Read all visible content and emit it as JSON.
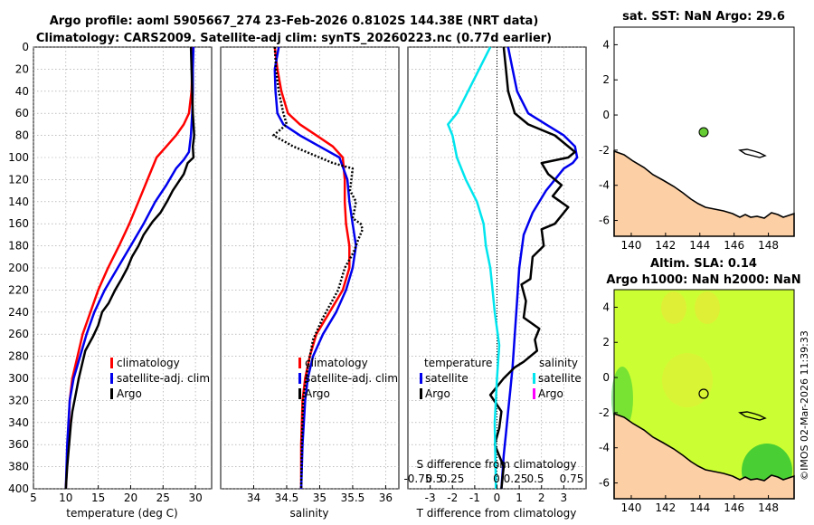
{
  "header": {
    "line1": "Argo profile: aoml 5905667_274 23-Feb-2026 0.8102S 144.38E (NRT data)",
    "line2": "Climatology: CARS2009. Satellite-adj clim: synTS_20260223.nc (0.77d earlier)"
  },
  "chart_data": [
    {
      "type": "line",
      "name": "temperature-profile",
      "xlabel": "temperature (deg C)",
      "ylabel": "",
      "xlim": [
        5,
        32.5
      ],
      "ylim": [
        0,
        400
      ],
      "xticks": [
        "5",
        "10",
        "15",
        "20",
        "25",
        "30"
      ],
      "yticks": [
        "0",
        "20",
        "40",
        "60",
        "80",
        "100",
        "120",
        "140",
        "160",
        "180",
        "200",
        "220",
        "240",
        "260",
        "280",
        "300",
        "320",
        "340",
        "360",
        "380",
        "400"
      ],
      "series": [
        {
          "name": "climatology",
          "color": "#ff0000",
          "x": [
            29.6,
            29.5,
            29.4,
            29.0,
            28.2,
            27.0,
            25.5,
            24.0,
            22.6,
            21.2,
            19.8,
            18.2,
            16.5,
            15.0,
            13.8,
            12.6,
            11.8,
            11.0,
            10.6,
            10.3,
            10.0
          ],
          "y": [
            0,
            20,
            40,
            60,
            70,
            80,
            90,
            100,
            120,
            140,
            160,
            180,
            200,
            220,
            240,
            260,
            280,
            300,
            320,
            360,
            400
          ]
        },
        {
          "name": "satellite-adj. clim",
          "color": "#0000ee",
          "x": [
            29.7,
            29.6,
            29.6,
            29.5,
            29.3,
            29.0,
            28.2,
            27.0,
            25.5,
            23.8,
            22.0,
            20.0,
            18.0,
            16.0,
            14.4,
            13.2,
            12.2,
            11.2,
            10.6,
            10.2,
            10.0
          ],
          "y": [
            0,
            20,
            40,
            60,
            80,
            95,
            102,
            110,
            125,
            140,
            160,
            180,
            200,
            220,
            240,
            260,
            280,
            300,
            320,
            360,
            400
          ]
        },
        {
          "name": "Argo",
          "color": "#000000",
          "x": [
            29.3,
            29.4,
            29.5,
            29.6,
            29.8,
            29.6,
            29.7,
            28.8,
            28.2,
            26.5,
            25.6,
            24.6,
            23.4,
            22.0,
            21.2,
            20.2,
            19.5,
            18.6,
            17.6,
            16.6,
            15.6,
            15.0,
            14.2,
            13.0,
            12.6,
            12.0,
            11.5,
            11.0,
            10.8,
            10.5,
            10.2,
            10.0
          ],
          "y": [
            0,
            20,
            40,
            60,
            80,
            90,
            100,
            105,
            115,
            130,
            140,
            150,
            158,
            170,
            180,
            190,
            200,
            210,
            220,
            232,
            240,
            252,
            262,
            275,
            285,
            300,
            315,
            330,
            340,
            360,
            380,
            400
          ]
        }
      ]
    },
    {
      "type": "line",
      "name": "salinity-profile",
      "xlabel": "salinity",
      "xlim": [
        33.5,
        36.2
      ],
      "ylim": [
        0,
        400
      ],
      "xticks": [
        "34",
        "34.5",
        "35",
        "35.5",
        "36"
      ],
      "series": [
        {
          "name": "climatology",
          "color": "#ff0000",
          "x": [
            34.32,
            34.36,
            34.42,
            34.52,
            34.7,
            34.95,
            35.2,
            35.35,
            35.38,
            35.38,
            35.4,
            35.45,
            35.45,
            35.35,
            35.15,
            34.95,
            34.85,
            34.78,
            34.74,
            34.72,
            34.72
          ],
          "y": [
            0,
            20,
            40,
            60,
            70,
            80,
            90,
            100,
            120,
            140,
            160,
            180,
            200,
            220,
            240,
            260,
            280,
            300,
            320,
            360,
            400
          ]
        },
        {
          "name": "satellite-adj. clim",
          "color": "#0000ee",
          "x": [
            34.38,
            34.32,
            34.33,
            34.36,
            34.45,
            34.7,
            35.0,
            35.3,
            35.42,
            35.45,
            35.5,
            35.55,
            35.5,
            35.4,
            35.25,
            35.05,
            34.9,
            34.82,
            34.78,
            34.74,
            34.72
          ],
          "y": [
            0,
            20,
            40,
            60,
            70,
            80,
            90,
            100,
            120,
            140,
            160,
            180,
            200,
            220,
            240,
            260,
            280,
            300,
            320,
            360,
            400
          ]
        },
        {
          "name": "Argo",
          "color": "#000000",
          "x": [
            34.32,
            34.34,
            34.38,
            34.45,
            34.5,
            34.3,
            34.6,
            35.0,
            35.2,
            35.5,
            35.48,
            35.46,
            35.55,
            35.52,
            35.5,
            35.62,
            35.65,
            35.58,
            35.52,
            35.38,
            35.28,
            35.05,
            34.9,
            34.82,
            34.75,
            34.73,
            34.72
          ],
          "y": [
            0,
            20,
            40,
            60,
            70,
            80,
            90,
            100,
            105,
            110,
            120,
            130,
            140,
            150,
            155,
            160,
            165,
            175,
            185,
            200,
            220,
            245,
            265,
            290,
            320,
            360,
            400
          ]
        }
      ]
    },
    {
      "type": "line",
      "name": "difference-profile",
      "xlabel": "T difference from climatology",
      "xlim": [
        -4,
        4
      ],
      "ylim": [
        0,
        400
      ],
      "xticks": [
        "-3",
        "-2",
        "-1",
        "0",
        "1",
        "2",
        "3"
      ],
      "top_axis_label": "S difference from climatology",
      "top_ticks": [
        "-0.75",
        "0.5",
        "0.25",
        "0",
        "0.25",
        "0.5",
        "0.75"
      ],
      "series": [
        {
          "name": "T satellite",
          "color": "#0000ee",
          "x": [
            0.5,
            0.7,
            0.9,
            1.4,
            2.2,
            3.0,
            3.5,
            3.6,
            3.4,
            3.0,
            2.2,
            1.6,
            1.2,
            1.0,
            0.9,
            0.8,
            0.7,
            0.6,
            0.5,
            0.4,
            0.3,
            0.2
          ],
          "y": [
            0,
            20,
            40,
            60,
            70,
            80,
            90,
            100,
            105,
            110,
            130,
            150,
            170,
            200,
            230,
            260,
            290,
            310,
            330,
            350,
            370,
            400
          ]
        },
        {
          "name": "T Argo",
          "color": "#000000",
          "x": [
            0.3,
            0.4,
            0.5,
            0.8,
            1.4,
            2.6,
            3.5,
            3.2,
            2.0,
            2.3,
            2.9,
            2.5,
            3.2,
            2.6,
            2.0,
            2.1,
            1.6,
            1.5,
            1.1,
            1.3,
            1.2,
            1.9,
            1.7,
            1.8,
            1.2,
            0.8,
            0.3,
            -0.3,
            0.2,
            0.1,
            -0.1,
            0.3,
            0.2
          ],
          "y": [
            0,
            20,
            40,
            60,
            70,
            80,
            95,
            100,
            105,
            115,
            125,
            135,
            145,
            160,
            165,
            180,
            190,
            210,
            215,
            230,
            245,
            255,
            265,
            275,
            285,
            290,
            300,
            315,
            330,
            345,
            360,
            380,
            400
          ]
        },
        {
          "name": "S satellite",
          "color": "#00e5ee",
          "x": [
            -0.3,
            -0.8,
            -1.3,
            -1.8,
            -2.2,
            -2.0,
            -1.8,
            -1.4,
            -0.9,
            -0.6,
            -0.5,
            -0.3,
            -0.2,
            -0.1,
            0.1,
            0.0,
            -0.1,
            -0.05
          ],
          "y": [
            0,
            20,
            40,
            60,
            70,
            80,
            100,
            120,
            140,
            160,
            180,
            200,
            220,
            240,
            270,
            300,
            340,
            400
          ]
        }
      ]
    }
  ],
  "panel1": {
    "legend": [
      "climatology",
      "satellite-adj. clim",
      "Argo"
    ]
  },
  "panel2": {
    "legend": [
      "climatology",
      "satellite-adj. clim",
      "Argo"
    ]
  },
  "panel3": {
    "legend_temp_title": "temperature",
    "legend_sal_title": "salinity",
    "legend_temp": [
      "satellite",
      "Argo"
    ],
    "legend_sal": [
      "satellite",
      "Argo"
    ]
  },
  "map_sst": {
    "title": "sat. SST: NaN Argo: 29.6",
    "xticks": [
      "140",
      "142",
      "144",
      "146",
      "148"
    ],
    "yticks": [
      "4",
      "2",
      "0",
      "-2",
      "-4",
      "-6"
    ],
    "land_color": "#fdcfa4",
    "argo_marker_color": "#66cc33"
  },
  "map_sla": {
    "title1": "Altim. SLA: 0.14",
    "title2": "Argo h1000: NaN h2000: NaN",
    "xticks": [
      "140",
      "142",
      "144",
      "146",
      "148"
    ],
    "yticks": [
      "4",
      "2",
      "0",
      "-2",
      "-4",
      "-6"
    ],
    "field_color": "#ccff33",
    "land_color": "#fdcfa4"
  },
  "watermark": "©IMOS 02-Mar-2026 11:39:33"
}
